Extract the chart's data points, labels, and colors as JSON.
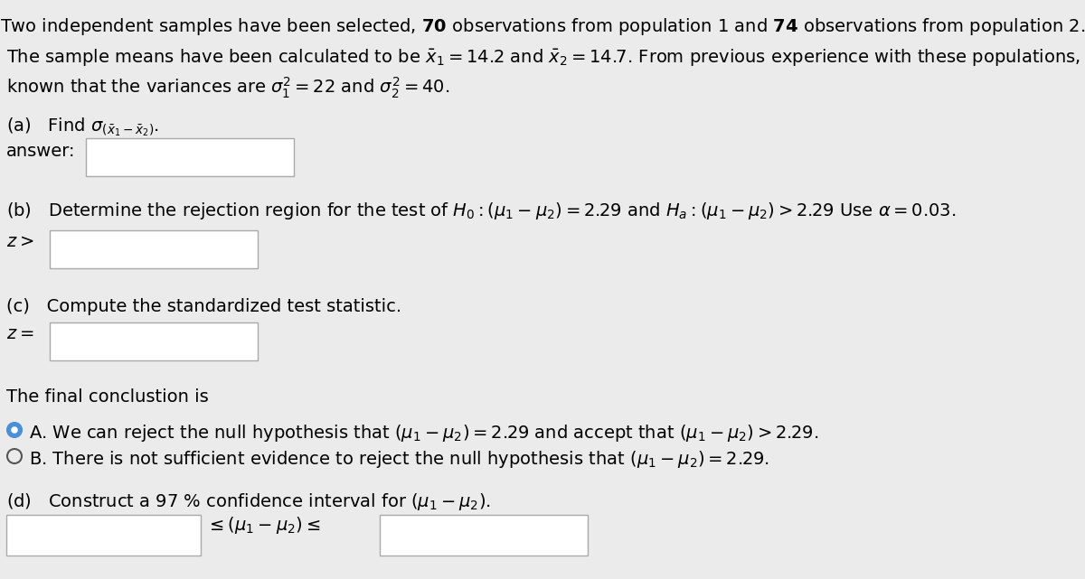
{
  "bg_color": "#ebebeb",
  "text_color": "#000000",
  "box_color": "#ffffff",
  "box_edge_color": "#aaaaaa",
  "figsize": [
    12.0,
    6.41
  ],
  "dpi": 100,
  "fs_main": 14,
  "circle_selected_color": "#4a90d9",
  "circle_border_color": "#555555"
}
